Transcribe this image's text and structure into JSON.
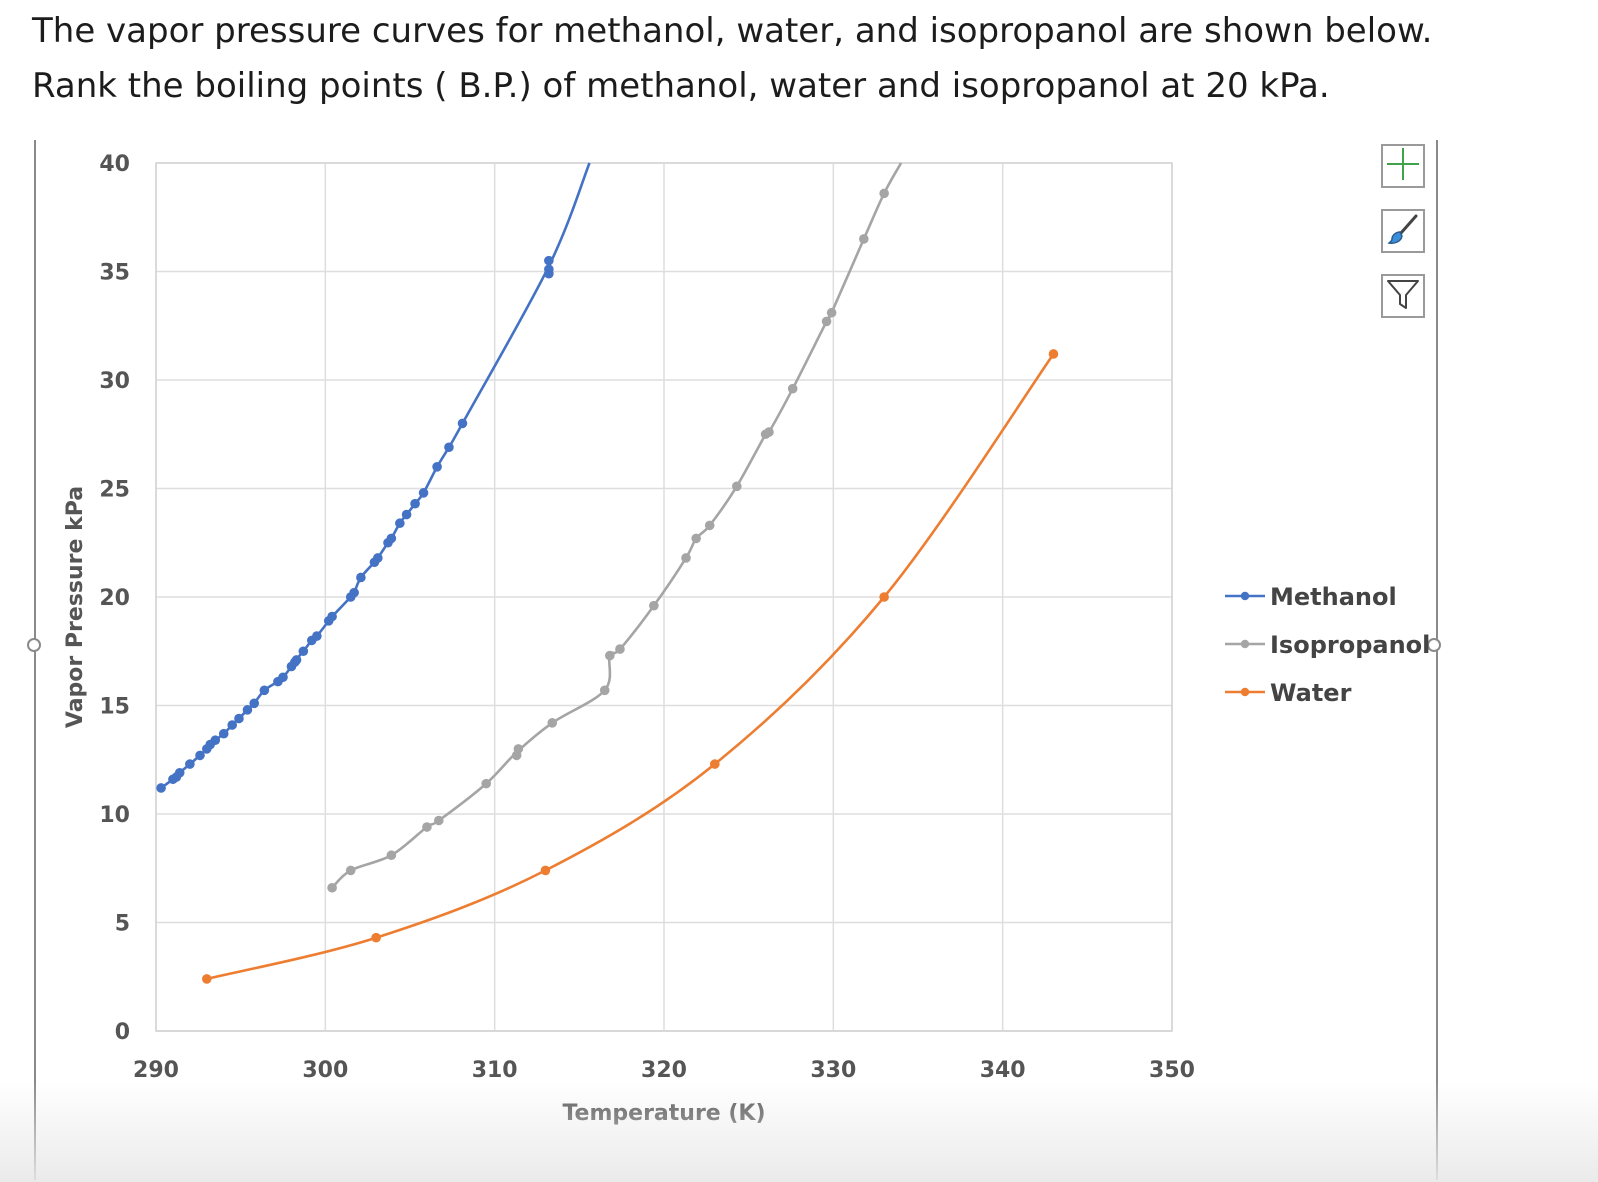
{
  "question": {
    "line1": "The vapor pressure curves for methanol, water, and isopropanol  are shown below.",
    "line2": "Rank the boiling points ( B.P.) of methanol, water and isopropanol at 20 kPa."
  },
  "toolbar": {
    "add_elements_icon": "plus-icon",
    "styles_icon": "paintbrush-icon",
    "filter_icon": "funnel-icon"
  },
  "chart_data": {
    "type": "scatter",
    "xlabel": "Temperature (K)",
    "ylabel": "Vapor Pressure kPa",
    "xlim": [
      290,
      350
    ],
    "ylim": [
      0,
      40
    ],
    "xticks": [
      290,
      300,
      310,
      320,
      330,
      340,
      350
    ],
    "yticks": [
      0,
      5,
      10,
      15,
      20,
      25,
      30,
      35,
      40
    ],
    "grid": true,
    "legend": "right",
    "series": [
      {
        "name": "Methanol",
        "color": "#4472c4",
        "x": [
          290.3,
          291.0,
          291.2,
          291.4,
          292.0,
          292.6,
          293.0,
          293.2,
          293.5,
          294.0,
          294.5,
          294.9,
          295.4,
          295.8,
          296.4,
          297.2,
          297.5,
          298.0,
          298.2,
          298.3,
          298.7,
          299.2,
          299.5,
          300.2,
          300.4,
          301.5,
          301.7,
          302.1,
          302.9,
          303.1,
          303.7,
          303.9,
          304.4,
          304.8,
          305.3,
          305.8,
          306.6,
          307.3,
          308.1,
          313.2,
          313.2,
          313.2
        ],
        "y": [
          11.2,
          11.6,
          11.7,
          11.9,
          12.3,
          12.7,
          13.0,
          13.2,
          13.4,
          13.7,
          14.1,
          14.4,
          14.8,
          15.1,
          15.7,
          16.1,
          16.3,
          16.8,
          17.0,
          17.1,
          17.5,
          18.0,
          18.2,
          18.9,
          19.1,
          20.0,
          20.2,
          20.9,
          21.6,
          21.8,
          22.5,
          22.7,
          23.4,
          23.8,
          24.3,
          24.8,
          26.0,
          26.9,
          28.0,
          34.9,
          35.1,
          35.5
        ],
        "curve_to": [
          315.6,
          40.0
        ]
      },
      {
        "name": "Isopropanol",
        "color": "#a5a5a5",
        "x": [
          300.4,
          301.5,
          303.9,
          306.0,
          306.7,
          309.5,
          311.3,
          311.4,
          313.4,
          316.5,
          316.8,
          317.4,
          319.4,
          321.3,
          321.9,
          322.7,
          324.3,
          326.0,
          326.2,
          327.6,
          329.6,
          329.9,
          331.8,
          333.0
        ],
        "y": [
          6.6,
          7.4,
          8.1,
          9.4,
          9.7,
          11.4,
          12.7,
          13.0,
          14.2,
          15.7,
          17.3,
          17.6,
          19.6,
          21.8,
          22.7,
          23.3,
          25.1,
          27.5,
          27.6,
          29.6,
          32.7,
          33.1,
          36.5,
          38.6
        ],
        "curve_to": [
          334.0,
          40.0
        ]
      },
      {
        "name": "Water",
        "color": "#ed7d31",
        "x": [
          293.0,
          303.0,
          313.0,
          323.0,
          333.0,
          343.0
        ],
        "y": [
          2.4,
          4.3,
          7.4,
          12.3,
          20.0,
          31.2
        ]
      }
    ]
  }
}
